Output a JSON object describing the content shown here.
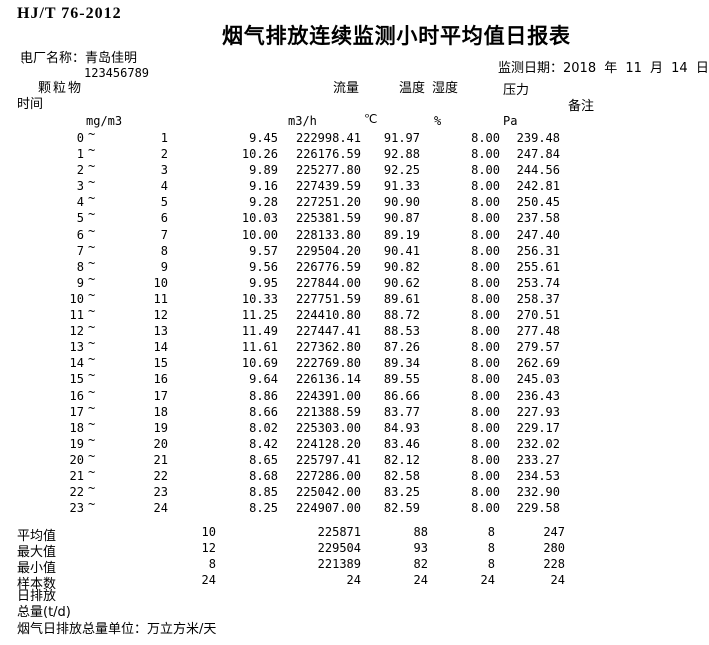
{
  "page": {
    "standard_code": "HJ/T 76-2012",
    "title": "烟气排放连续监测小时平均值日报表",
    "plant_name_label": "电厂名称：青岛佳明",
    "tick_mark": "`",
    "plant_code": "123456789",
    "monitor_date": "监测日期：2018 年 11 月 14 日"
  },
  "table": {
    "tilde": "~",
    "headers": {
      "time": "时间",
      "dust": "颗粒物",
      "flow": "流量",
      "temp": "温度",
      "humidity": "湿度",
      "pressure": "压力",
      "remark": "备注"
    },
    "units": {
      "dust": "mg/m3",
      "flow": "m3/h",
      "temp": "℃",
      "humidity": "%",
      "pressure": "Pa"
    },
    "rows": [
      {
        "hour_start": "0",
        "hour_end": "1",
        "dust": "9.45",
        "flow": "222998.41",
        "temp": "91.97",
        "humidity": "8.00",
        "pressure": "239.48"
      },
      {
        "hour_start": "1",
        "hour_end": "2",
        "dust": "10.26",
        "flow": "226176.59",
        "temp": "92.88",
        "humidity": "8.00",
        "pressure": "247.84"
      },
      {
        "hour_start": "2",
        "hour_end": "3",
        "dust": "9.89",
        "flow": "225277.80",
        "temp": "92.25",
        "humidity": "8.00",
        "pressure": "244.56"
      },
      {
        "hour_start": "3",
        "hour_end": "4",
        "dust": "9.16",
        "flow": "227439.59",
        "temp": "91.33",
        "humidity": "8.00",
        "pressure": "242.81"
      },
      {
        "hour_start": "4",
        "hour_end": "5",
        "dust": "9.28",
        "flow": "227251.20",
        "temp": "90.90",
        "humidity": "8.00",
        "pressure": "250.45"
      },
      {
        "hour_start": "5",
        "hour_end": "6",
        "dust": "10.03",
        "flow": "225381.59",
        "temp": "90.87",
        "humidity": "8.00",
        "pressure": "237.58"
      },
      {
        "hour_start": "6",
        "hour_end": "7",
        "dust": "10.00",
        "flow": "228133.80",
        "temp": "89.19",
        "humidity": "8.00",
        "pressure": "247.40"
      },
      {
        "hour_start": "7",
        "hour_end": "8",
        "dust": "9.57",
        "flow": "229504.20",
        "temp": "90.41",
        "humidity": "8.00",
        "pressure": "256.31"
      },
      {
        "hour_start": "8",
        "hour_end": "9",
        "dust": "9.56",
        "flow": "226776.59",
        "temp": "90.82",
        "humidity": "8.00",
        "pressure": "255.61"
      },
      {
        "hour_start": "9",
        "hour_end": "10",
        "dust": "9.95",
        "flow": "227844.00",
        "temp": "90.62",
        "humidity": "8.00",
        "pressure": "253.74"
      },
      {
        "hour_start": "10",
        "hour_end": "11",
        "dust": "10.33",
        "flow": "227751.59",
        "temp": "89.61",
        "humidity": "8.00",
        "pressure": "258.37"
      },
      {
        "hour_start": "11",
        "hour_end": "12",
        "dust": "11.25",
        "flow": "224410.80",
        "temp": "88.72",
        "humidity": "8.00",
        "pressure": "270.51"
      },
      {
        "hour_start": "12",
        "hour_end": "13",
        "dust": "11.49",
        "flow": "227447.41",
        "temp": "88.53",
        "humidity": "8.00",
        "pressure": "277.48"
      },
      {
        "hour_start": "13",
        "hour_end": "14",
        "dust": "11.61",
        "flow": "227362.80",
        "temp": "87.26",
        "humidity": "8.00",
        "pressure": "279.57"
      },
      {
        "hour_start": "14",
        "hour_end": "15",
        "dust": "10.69",
        "flow": "222769.80",
        "temp": "89.34",
        "humidity": "8.00",
        "pressure": "262.69"
      },
      {
        "hour_start": "15",
        "hour_end": "16",
        "dust": "9.64",
        "flow": "226136.14",
        "temp": "89.55",
        "humidity": "8.00",
        "pressure": "245.03"
      },
      {
        "hour_start": "16",
        "hour_end": "17",
        "dust": "8.86",
        "flow": "224391.00",
        "temp": "86.66",
        "humidity": "8.00",
        "pressure": "236.43"
      },
      {
        "hour_start": "17",
        "hour_end": "18",
        "dust": "8.66",
        "flow": "221388.59",
        "temp": "83.77",
        "humidity": "8.00",
        "pressure": "227.93"
      },
      {
        "hour_start": "18",
        "hour_end": "19",
        "dust": "8.02",
        "flow": "225303.00",
        "temp": "84.93",
        "humidity": "8.00",
        "pressure": "229.17"
      },
      {
        "hour_start": "19",
        "hour_end": "20",
        "dust": "8.42",
        "flow": "224128.20",
        "temp": "83.46",
        "humidity": "8.00",
        "pressure": "232.02"
      },
      {
        "hour_start": "20",
        "hour_end": "21",
        "dust": "8.65",
        "flow": "225797.41",
        "temp": "82.12",
        "humidity": "8.00",
        "pressure": "233.27"
      },
      {
        "hour_start": "21",
        "hour_end": "22",
        "dust": "8.68",
        "flow": "227286.00",
        "temp": "82.58",
        "humidity": "8.00",
        "pressure": "234.53"
      },
      {
        "hour_start": "22",
        "hour_end": "23",
        "dust": "8.85",
        "flow": "225042.00",
        "temp": "83.25",
        "humidity": "8.00",
        "pressure": "232.90"
      },
      {
        "hour_start": "23",
        "hour_end": "24",
        "dust": "8.25",
        "flow": "224907.00",
        "temp": "82.59",
        "humidity": "8.00",
        "pressure": "229.58"
      }
    ],
    "stats": [
      {
        "label": "平均值",
        "dust": "10",
        "flow": "225871",
        "temp": "88",
        "humidity": "8",
        "pressure": "247"
      },
      {
        "label": "最大值",
        "dust": "12",
        "flow": "229504",
        "temp": "93",
        "humidity": "8",
        "pressure": "280"
      },
      {
        "label": "最小值",
        "dust": "8",
        "flow": "221389",
        "temp": "82",
        "humidity": "8",
        "pressure": "228"
      },
      {
        "label": "样本数",
        "dust": "24",
        "flow": "24",
        "temp": "24",
        "humidity": "24",
        "pressure": "24"
      }
    ],
    "footnotes": [
      {
        "label": "日排放"
      },
      {
        "label": "总量(t/d)"
      },
      {
        "label": "烟气日排放总量单位：万立方米/天"
      }
    ]
  }
}
